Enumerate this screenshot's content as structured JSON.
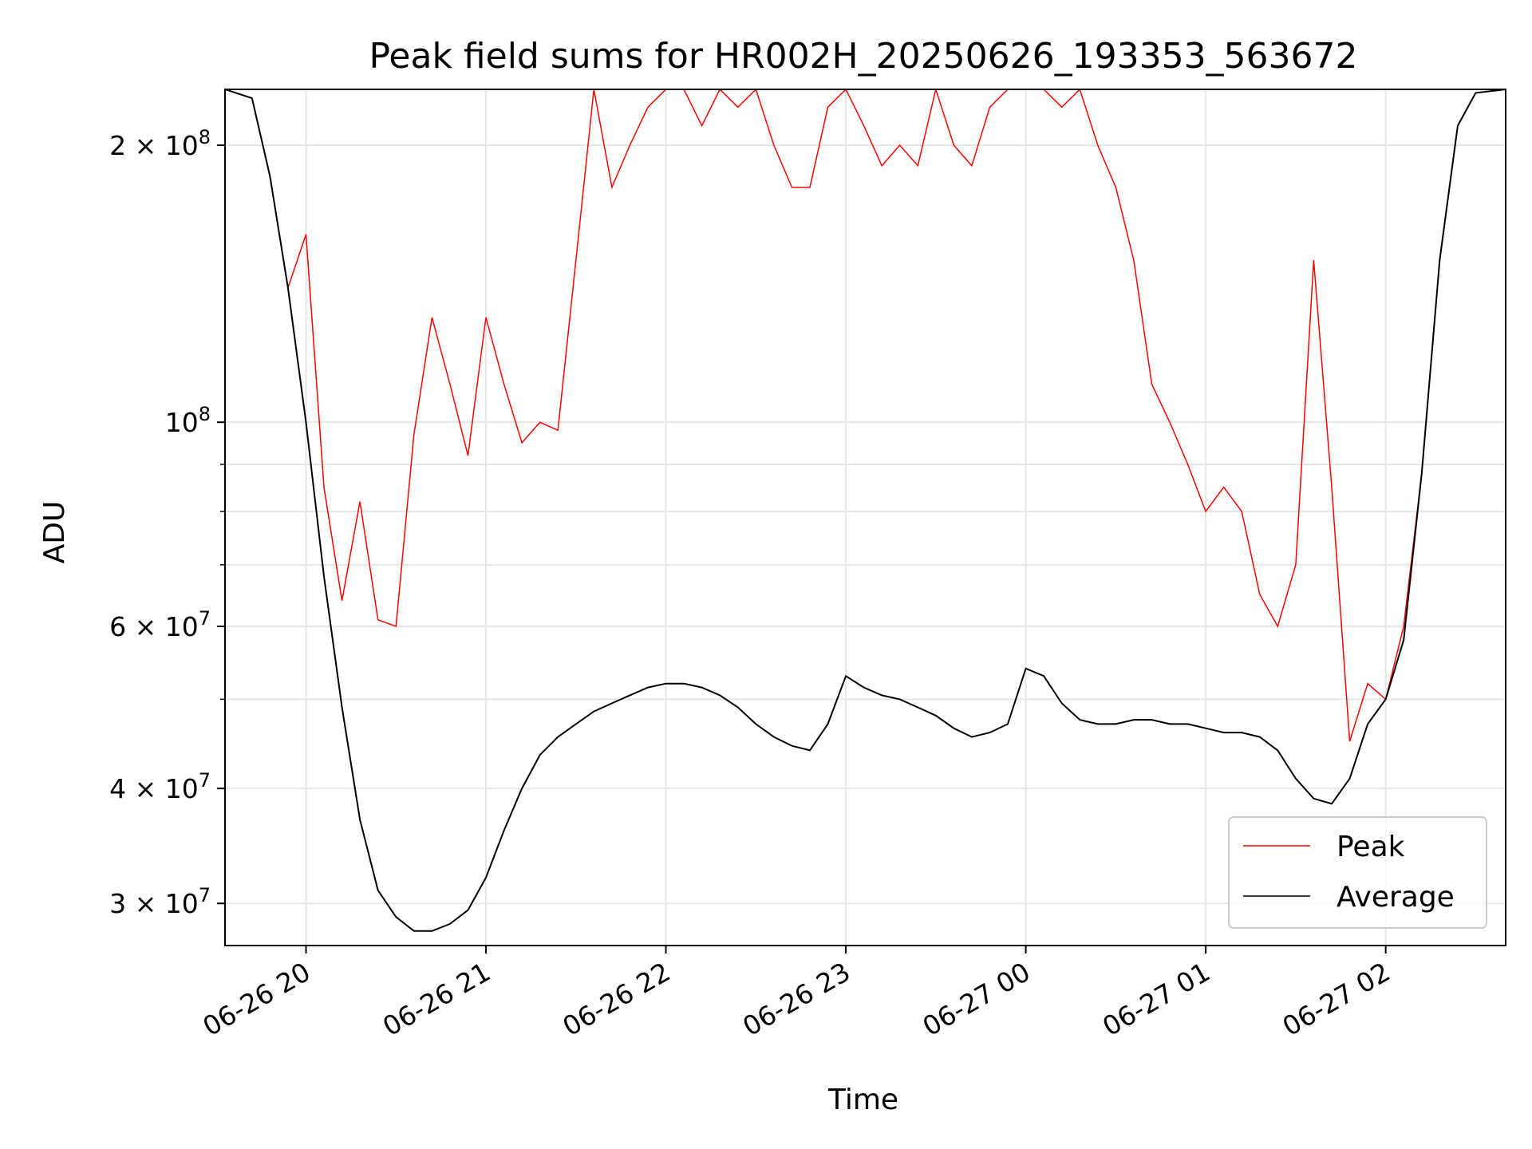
{
  "chart_data": {
    "type": "line",
    "title": "Peak field sums for HR002H_20250626_193353_563672",
    "xlabel": "Time",
    "ylabel": "ADU",
    "y_scale": "log",
    "xlim": [
      "2025-06-26T19:33",
      "2025-06-27T02:40"
    ],
    "ylim": [
      27000000,
      230000000
    ],
    "grid": true,
    "legend_position": "lower right",
    "x_ticks": [
      {
        "t": "2025-06-26T20:00",
        "label": "06-26 20"
      },
      {
        "t": "2025-06-26T21:00",
        "label": "06-26 21"
      },
      {
        "t": "2025-06-26T22:00",
        "label": "06-26 22"
      },
      {
        "t": "2025-06-26T23:00",
        "label": "06-26 23"
      },
      {
        "t": "2025-06-27T00:00",
        "label": "06-27 00"
      },
      {
        "t": "2025-06-27T01:00",
        "label": "06-27 01"
      },
      {
        "t": "2025-06-27T02:00",
        "label": "06-27 02"
      }
    ],
    "y_ticks": [
      {
        "value": 30000000,
        "mant": "3",
        "exp": "7"
      },
      {
        "value": 40000000,
        "mant": "4",
        "exp": "7"
      },
      {
        "value": 60000000,
        "mant": "6",
        "exp": "7"
      },
      {
        "value": 100000000,
        "mant": "",
        "exp": "8"
      },
      {
        "value": 200000000,
        "mant": "2",
        "exp": "8"
      }
    ],
    "series": [
      {
        "name": "Average",
        "color": "#000000",
        "x": [
          "2025-06-26T19:33",
          "2025-06-26T19:42",
          "2025-06-26T19:48",
          "2025-06-26T19:54",
          "2025-06-26T20:00",
          "2025-06-26T20:06",
          "2025-06-26T20:12",
          "2025-06-26T20:18",
          "2025-06-26T20:24",
          "2025-06-26T20:30",
          "2025-06-26T20:36",
          "2025-06-26T20:42",
          "2025-06-26T20:48",
          "2025-06-26T20:54",
          "2025-06-26T21:00",
          "2025-06-26T21:06",
          "2025-06-26T21:12",
          "2025-06-26T21:18",
          "2025-06-26T21:24",
          "2025-06-26T21:30",
          "2025-06-26T21:36",
          "2025-06-26T21:42",
          "2025-06-26T21:48",
          "2025-06-26T21:54",
          "2025-06-26T22:00",
          "2025-06-26T22:06",
          "2025-06-26T22:12",
          "2025-06-26T22:18",
          "2025-06-26T22:24",
          "2025-06-26T22:30",
          "2025-06-26T22:36",
          "2025-06-26T22:42",
          "2025-06-26T22:48",
          "2025-06-26T22:54",
          "2025-06-26T23:00",
          "2025-06-26T23:06",
          "2025-06-26T23:12",
          "2025-06-26T23:18",
          "2025-06-26T23:24",
          "2025-06-26T23:30",
          "2025-06-26T23:36",
          "2025-06-26T23:42",
          "2025-06-26T23:48",
          "2025-06-26T23:54",
          "2025-06-27T00:00",
          "2025-06-27T00:06",
          "2025-06-27T00:12",
          "2025-06-27T00:18",
          "2025-06-27T00:24",
          "2025-06-27T00:30",
          "2025-06-27T00:36",
          "2025-06-27T00:42",
          "2025-06-27T00:48",
          "2025-06-27T00:54",
          "2025-06-27T01:00",
          "2025-06-27T01:06",
          "2025-06-27T01:12",
          "2025-06-27T01:18",
          "2025-06-27T01:24",
          "2025-06-27T01:30",
          "2025-06-27T01:36",
          "2025-06-27T01:42",
          "2025-06-27T01:48",
          "2025-06-27T01:54",
          "2025-06-27T02:00",
          "2025-06-27T02:06",
          "2025-06-27T02:12",
          "2025-06-27T02:18",
          "2025-06-27T02:24",
          "2025-06-27T02:30",
          "2025-06-27T02:40"
        ],
        "y": [
          230000000,
          225000000,
          185000000,
          140000000,
          100000000,
          68000000,
          49000000,
          37000000,
          31000000,
          29000000,
          28000000,
          28000000,
          28500000,
          29500000,
          32000000,
          36000000,
          40000000,
          43500000,
          45500000,
          47000000,
          48500000,
          49500000,
          50500000,
          51500000,
          52000000,
          52000000,
          51500000,
          50500000,
          49000000,
          47000000,
          45500000,
          44500000,
          44000000,
          47000000,
          53000000,
          51500000,
          50500000,
          50000000,
          49000000,
          48000000,
          46500000,
          45500000,
          46000000,
          47000000,
          54000000,
          53000000,
          49500000,
          47500000,
          47000000,
          47000000,
          47500000,
          47500000,
          47000000,
          47000000,
          46500000,
          46000000,
          46000000,
          45500000,
          44000000,
          41000000,
          39000000,
          38500000,
          41000000,
          47000000,
          50000000,
          58000000,
          88000000,
          150000000,
          210000000,
          228000000,
          230000000
        ]
      },
      {
        "name": "Peak",
        "color": "#ff0000",
        "x": [
          "2025-06-26T19:33",
          "2025-06-26T19:42",
          "2025-06-26T19:48",
          "2025-06-26T19:54",
          "2025-06-26T20:00",
          "2025-06-26T20:06",
          "2025-06-26T20:12",
          "2025-06-26T20:18",
          "2025-06-26T20:24",
          "2025-06-26T20:30",
          "2025-06-26T20:36",
          "2025-06-26T20:42",
          "2025-06-26T20:48",
          "2025-06-26T20:54",
          "2025-06-26T21:00",
          "2025-06-26T21:06",
          "2025-06-26T21:12",
          "2025-06-26T21:18",
          "2025-06-26T21:24",
          "2025-06-26T21:30",
          "2025-06-26T21:36",
          "2025-06-26T21:42",
          "2025-06-26T21:48",
          "2025-06-26T21:54",
          "2025-06-26T22:00",
          "2025-06-26T22:06",
          "2025-06-26T22:12",
          "2025-06-26T22:18",
          "2025-06-26T22:24",
          "2025-06-26T22:30",
          "2025-06-26T22:36",
          "2025-06-26T22:42",
          "2025-06-26T22:48",
          "2025-06-26T22:54",
          "2025-06-26T23:00",
          "2025-06-26T23:06",
          "2025-06-26T23:12",
          "2025-06-26T23:18",
          "2025-06-26T23:24",
          "2025-06-26T23:30",
          "2025-06-26T23:36",
          "2025-06-26T23:42",
          "2025-06-26T23:48",
          "2025-06-26T23:54",
          "2025-06-27T00:00",
          "2025-06-27T00:06",
          "2025-06-27T00:12",
          "2025-06-27T00:18",
          "2025-06-27T00:24",
          "2025-06-27T00:30",
          "2025-06-27T00:36",
          "2025-06-27T00:42",
          "2025-06-27T00:48",
          "2025-06-27T00:54",
          "2025-06-27T01:00",
          "2025-06-27T01:06",
          "2025-06-27T01:12",
          "2025-06-27T01:18",
          "2025-06-27T01:24",
          "2025-06-27T01:30",
          "2025-06-27T01:36",
          "2025-06-27T01:42",
          "2025-06-27T01:48",
          "2025-06-27T01:54",
          "2025-06-27T02:00",
          "2025-06-27T02:06",
          "2025-06-27T02:12",
          "2025-06-27T02:18",
          "2025-06-27T02:24",
          "2025-06-27T02:30",
          "2025-06-27T02:40"
        ],
        "y": [
          230000000,
          225000000,
          185000000,
          140000000,
          160000000,
          85000000,
          64000000,
          82000000,
          61000000,
          60000000,
          97000000,
          130000000,
          110000000,
          92000000,
          130000000,
          110000000,
          95000000,
          100000000,
          98000000,
          150000000,
          230000000,
          180000000,
          200000000,
          220000000,
          230000000,
          230000000,
          210000000,
          230000000,
          220000000,
          230000000,
          200000000,
          180000000,
          180000000,
          220000000,
          230000000,
          210000000,
          190000000,
          200000000,
          190000000,
          230000000,
          200000000,
          190000000,
          220000000,
          230000000,
          230000000,
          230000000,
          220000000,
          230000000,
          200000000,
          180000000,
          150000000,
          110000000,
          100000000,
          90000000,
          80000000,
          85000000,
          80000000,
          65000000,
          60000000,
          70000000,
          150000000,
          85000000,
          45000000,
          52000000,
          50000000,
          60000000,
          88000000,
          150000000,
          210000000,
          228000000,
          230000000
        ]
      }
    ]
  }
}
